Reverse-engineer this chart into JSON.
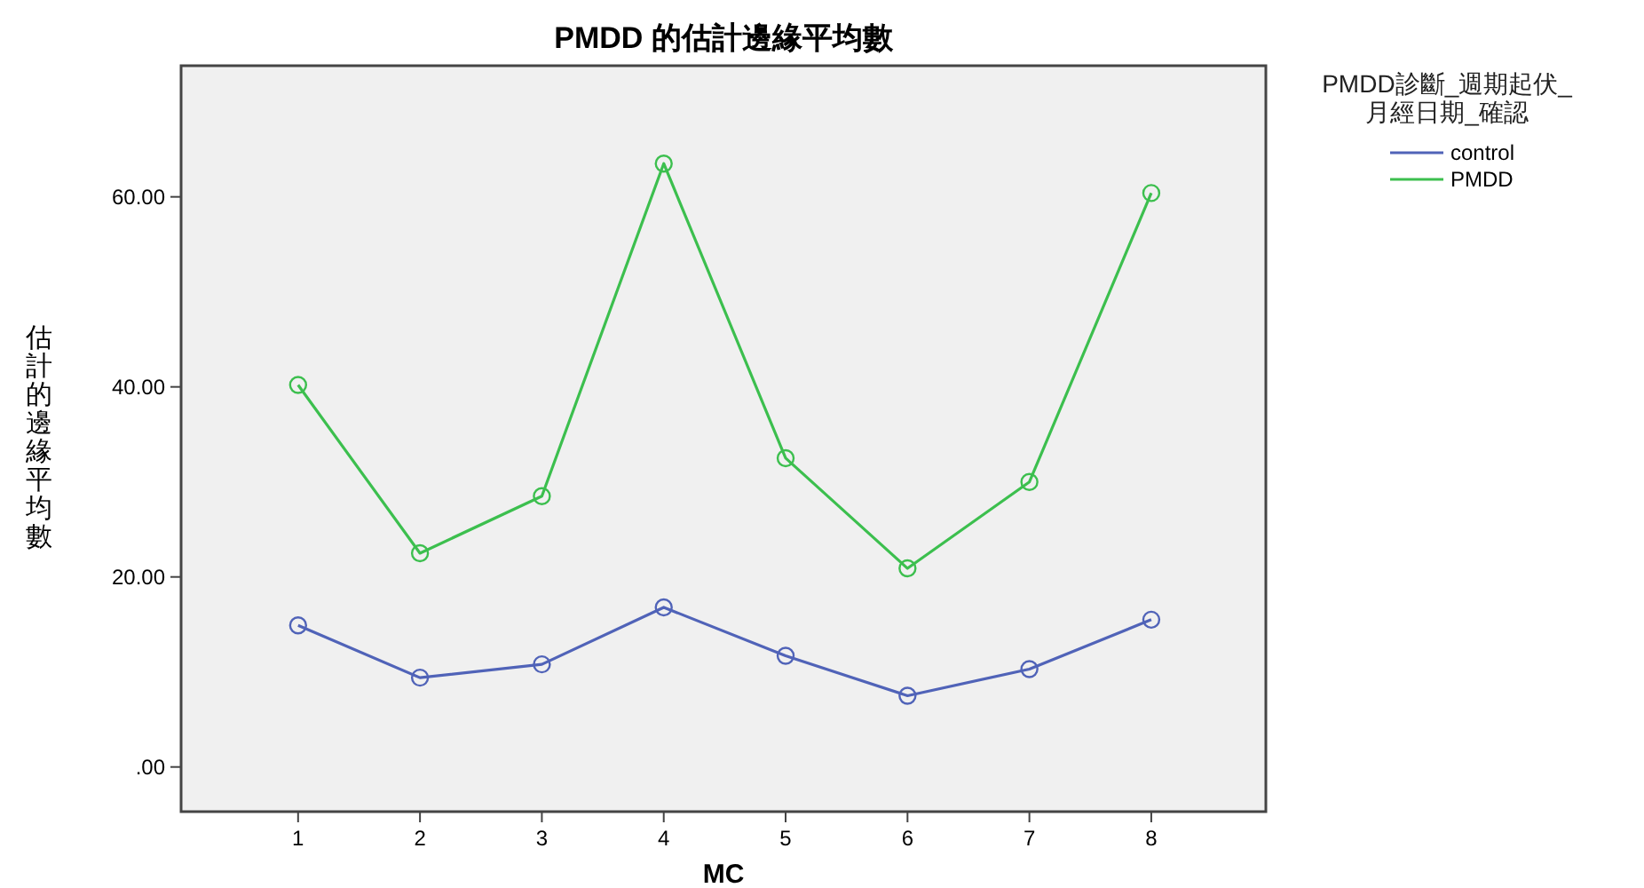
{
  "chart_data": {
    "type": "line",
    "title": "PMDD 的估計邊緣平均數",
    "xlabel": "MC",
    "ylabel": "估計的邊緣平均數",
    "legend_title": "PMDD診斷_週期起伏_月經日期_確認",
    "categories": [
      "1",
      "2",
      "3",
      "4",
      "5",
      "6",
      "7",
      "8"
    ],
    "series": [
      {
        "name": "control",
        "color": "#5063b8",
        "values": [
          14.9,
          9.4,
          10.8,
          16.8,
          11.7,
          7.5,
          10.3,
          15.5
        ]
      },
      {
        "name": "PMDD",
        "color": "#3cbf4e",
        "values": [
          40.2,
          22.5,
          28.5,
          63.5,
          32.5,
          20.9,
          30.0,
          60.4
        ]
      }
    ],
    "ylim": [
      -4.7,
      73.8
    ],
    "yticks": [
      {
        "value": 0,
        "label": ".00"
      },
      {
        "value": 20,
        "label": "20.00"
      },
      {
        "value": 40,
        "label": "40.00"
      },
      {
        "value": 60,
        "label": "60.00"
      }
    ],
    "marker": "circle",
    "line_style": "solid",
    "grid": false,
    "legend": "top right"
  }
}
